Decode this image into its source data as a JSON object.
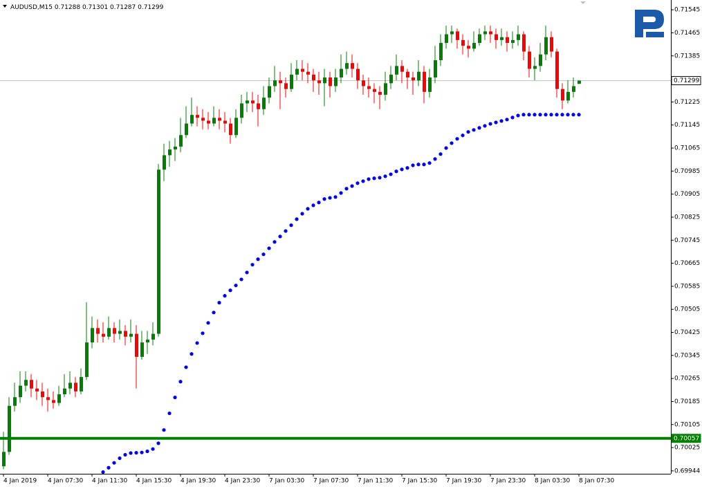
{
  "chart_data": {
    "type": "candlestick",
    "title": "AUDUSD,M15",
    "ohlc_header": [
      0.71288,
      0.71301,
      0.71287,
      0.71299
    ],
    "categories": [
      "4 Jan 2019",
      null,
      null,
      null,
      null,
      null,
      null,
      null,
      "4 Jan 07:30",
      null,
      null,
      null,
      null,
      null,
      null,
      null,
      "4 Jan 11:30",
      null,
      null,
      null,
      null,
      null,
      null,
      null,
      "4 Jan 15:30",
      null,
      null,
      null,
      null,
      null,
      null,
      null,
      "4 Jan 19:30",
      null,
      null,
      null,
      null,
      null,
      null,
      null,
      "4 Jan 23:30",
      null,
      null,
      null,
      null,
      null,
      null,
      null,
      "7 Jan 03:30",
      null,
      null,
      null,
      null,
      null,
      null,
      null,
      "7 Jan 07:30",
      null,
      null,
      null,
      null,
      null,
      null,
      null,
      "7 Jan 11:30",
      null,
      null,
      null,
      null,
      null,
      null,
      null,
      "7 Jan 15:30",
      null,
      null,
      null,
      null,
      null,
      null,
      null,
      "7 Jan 19:30",
      null,
      null,
      null,
      null,
      null,
      null,
      null,
      "7 Jan 23:30",
      null,
      null,
      null,
      null,
      null,
      null,
      null,
      "8 Jan 03:30",
      null,
      null,
      null,
      null,
      null,
      null,
      null,
      "8 Jan 07:30"
    ],
    "candles": {
      "up_color": "#008000",
      "down_color": "#ff0000",
      "open": [
        0.6996,
        0.7001,
        0.7017,
        0.702,
        0.7024,
        0.7026,
        0.7023,
        0.7022,
        0.702,
        0.7019,
        0.7018,
        0.7021,
        0.7023,
        0.7025,
        0.7022,
        0.7027,
        0.7039,
        0.7044,
        0.7042,
        0.7041,
        0.7044,
        0.7042,
        0.7043,
        0.7041,
        0.7042,
        0.7034,
        0.7039,
        0.704,
        0.7042,
        0.7099,
        0.7104,
        0.7106,
        0.7107,
        0.7111,
        0.7115,
        0.7118,
        0.7117,
        0.7116,
        0.7115,
        0.7117,
        0.7116,
        0.7115,
        0.7111,
        0.7117,
        0.7122,
        0.7123,
        0.7122,
        0.712,
        0.7124,
        0.7128,
        0.713,
        0.7129,
        0.7127,
        0.7132,
        0.7134,
        0.7133,
        0.7132,
        0.713,
        0.7129,
        0.7131,
        0.7128,
        0.7131,
        0.7134,
        0.7136,
        0.7134,
        0.713,
        0.7128,
        0.7127,
        0.7126,
        0.7125,
        0.7129,
        0.7132,
        0.7135,
        0.7133,
        0.7131,
        0.713,
        0.7133,
        0.7126,
        0.7131,
        0.7137,
        0.7143,
        0.7146,
        0.7147,
        0.7144,
        0.7142,
        0.7141,
        0.7143,
        0.7146,
        0.7147,
        0.7146,
        0.7144,
        0.7145,
        0.7143,
        0.7144,
        0.7146,
        0.714,
        0.7134,
        0.7135,
        0.7139,
        0.7145,
        0.714,
        0.7127,
        0.7123,
        0.7126,
        0.71288
      ],
      "high": [
        0.7008,
        0.702,
        0.7025,
        0.7029,
        0.7029,
        0.7028,
        0.7026,
        0.7025,
        0.7023,
        0.7022,
        0.7024,
        0.7028,
        0.7029,
        0.7027,
        0.703,
        0.7053,
        0.7048,
        0.7047,
        0.7046,
        0.7048,
        0.7046,
        0.7047,
        0.7045,
        0.7047,
        0.7045,
        0.7043,
        0.7043,
        0.7046,
        0.7101,
        0.7108,
        0.7109,
        0.711,
        0.7117,
        0.7121,
        0.7124,
        0.7121,
        0.712,
        0.7119,
        0.7121,
        0.712,
        0.7119,
        0.7117,
        0.712,
        0.7125,
        0.7126,
        0.7126,
        0.7125,
        0.7128,
        0.7131,
        0.7135,
        0.7133,
        0.7131,
        0.7136,
        0.7137,
        0.7137,
        0.7136,
        0.7134,
        0.7133,
        0.7134,
        0.7133,
        0.7134,
        0.7139,
        0.714,
        0.7139,
        0.7136,
        0.7132,
        0.7131,
        0.7129,
        0.7128,
        0.7133,
        0.7135,
        0.7139,
        0.7137,
        0.7134,
        0.7133,
        0.7137,
        0.7135,
        0.7134,
        0.7142,
        0.7146,
        0.7149,
        0.7149,
        0.7148,
        0.7146,
        0.7144,
        0.7147,
        0.7148,
        0.7149,
        0.7149,
        0.7148,
        0.7148,
        0.7147,
        0.7147,
        0.7149,
        0.7147,
        0.7142,
        0.7138,
        0.7143,
        0.7149,
        0.7147,
        0.7141,
        0.7129,
        0.713,
        0.7131,
        0.71301
      ],
      "low": [
        0.6995,
        0.7,
        0.7015,
        0.7018,
        0.7022,
        0.702,
        0.7019,
        0.7017,
        0.7015,
        0.7016,
        0.7017,
        0.702,
        0.7021,
        0.702,
        0.7021,
        0.7026,
        0.7037,
        0.7039,
        0.7039,
        0.704,
        0.7039,
        0.704,
        0.7038,
        0.7039,
        0.7023,
        0.7033,
        0.7035,
        0.7038,
        0.7041,
        0.7095,
        0.71,
        0.7102,
        0.7105,
        0.711,
        0.7114,
        0.7114,
        0.7113,
        0.7113,
        0.7114,
        0.7113,
        0.7112,
        0.7108,
        0.711,
        0.7115,
        0.7119,
        0.7119,
        0.7114,
        0.7118,
        0.7122,
        0.7126,
        0.712,
        0.7124,
        0.7126,
        0.713,
        0.713,
        0.7129,
        0.7126,
        0.7125,
        0.7121,
        0.7124,
        0.7126,
        0.7129,
        0.7132,
        0.7131,
        0.7127,
        0.7125,
        0.7124,
        0.7122,
        0.712,
        0.7123,
        0.7127,
        0.713,
        0.7129,
        0.7127,
        0.7125,
        0.7128,
        0.7122,
        0.7124,
        0.7129,
        0.7135,
        0.7141,
        0.7143,
        0.7141,
        0.7139,
        0.7138,
        0.714,
        0.7142,
        0.7144,
        0.7143,
        0.7141,
        0.7142,
        0.714,
        0.7141,
        0.7142,
        0.7137,
        0.7131,
        0.713,
        0.7133,
        0.7137,
        0.7138,
        0.7124,
        0.712,
        0.7122,
        0.7124,
        0.71287
      ],
      "close": [
        0.7001,
        0.7017,
        0.702,
        0.7024,
        0.7026,
        0.7023,
        0.7022,
        0.702,
        0.7019,
        0.7018,
        0.7021,
        0.7023,
        0.7025,
        0.7022,
        0.7027,
        0.7039,
        0.7044,
        0.7042,
        0.7041,
        0.7044,
        0.7042,
        0.7043,
        0.7041,
        0.7042,
        0.7034,
        0.7039,
        0.704,
        0.7042,
        0.7099,
        0.7104,
        0.7106,
        0.7107,
        0.7111,
        0.7115,
        0.7118,
        0.7117,
        0.7116,
        0.7115,
        0.7117,
        0.7116,
        0.7115,
        0.7111,
        0.7117,
        0.7122,
        0.7123,
        0.7122,
        0.712,
        0.7124,
        0.7128,
        0.713,
        0.7129,
        0.7127,
        0.7132,
        0.7134,
        0.7133,
        0.7132,
        0.713,
        0.7129,
        0.7131,
        0.7128,
        0.7131,
        0.7134,
        0.7136,
        0.7134,
        0.713,
        0.7128,
        0.7127,
        0.7126,
        0.7125,
        0.7129,
        0.7132,
        0.7135,
        0.7133,
        0.7131,
        0.713,
        0.7133,
        0.7126,
        0.7131,
        0.7137,
        0.7143,
        0.7146,
        0.7147,
        0.7144,
        0.7142,
        0.7141,
        0.7143,
        0.7146,
        0.7147,
        0.7146,
        0.7144,
        0.7145,
        0.7143,
        0.7144,
        0.7146,
        0.714,
        0.7134,
        0.7135,
        0.7139,
        0.7145,
        0.714,
        0.7127,
        0.7123,
        0.7126,
        0.7128,
        0.71299
      ]
    },
    "indicator": {
      "color": "#0000ff",
      "values": [
        null,
        null,
        null,
        null,
        null,
        null,
        null,
        null,
        null,
        null,
        null,
        null,
        null,
        null,
        null,
        null,
        null,
        null,
        0.6994,
        0.69955,
        0.69972,
        0.69988,
        0.7,
        0.70006,
        0.70007,
        0.70008,
        0.70012,
        0.7002,
        0.7004,
        0.70086,
        0.70144,
        0.70199,
        0.70254,
        0.70304,
        0.7035,
        0.70388,
        0.70422,
        0.70458,
        0.70494,
        0.70528,
        0.70552,
        0.70571,
        0.70588,
        0.70609,
        0.70633,
        0.7066,
        0.70679,
        0.70696,
        0.70717,
        0.70739,
        0.70758,
        0.70777,
        0.70797,
        0.70818,
        0.70837,
        0.70854,
        0.70866,
        0.70876,
        0.70888,
        0.70892,
        0.70895,
        0.70909,
        0.70924,
        0.70933,
        0.70943,
        0.7095,
        0.70957,
        0.7096,
        0.70962,
        0.70967,
        0.70974,
        0.70984,
        0.70991,
        0.70996,
        0.71005,
        0.71008,
        0.71008,
        0.71013,
        0.71027,
        0.71044,
        0.71065,
        0.71082,
        0.71097,
        0.71109,
        0.71121,
        0.71128,
        0.71135,
        0.71142,
        0.71149,
        0.71154,
        0.71159,
        0.71164,
        0.71171,
        0.71178,
        0.71181,
        0.71181,
        0.71181,
        0.71181,
        0.71181,
        0.71181,
        0.71181,
        0.71181,
        0.71181,
        0.71181,
        0.71181
      ]
    },
    "price_line": {
      "value": 0.71299,
      "color": "#c0c0c0"
    },
    "level_line": {
      "value": 0.70057,
      "color": "#008000"
    },
    "ylim": [
      0.69934,
      0.71579
    ],
    "yticks": [
      0.71545,
      0.71465,
      0.71385,
      0.71225,
      0.71145,
      0.71065,
      0.70985,
      0.70905,
      0.70825,
      0.70745,
      0.70665,
      0.70585,
      0.70505,
      0.70425,
      0.70345,
      0.70265,
      0.70185,
      0.70105,
      0.70025,
      0.69944
    ],
    "grid": false
  }
}
